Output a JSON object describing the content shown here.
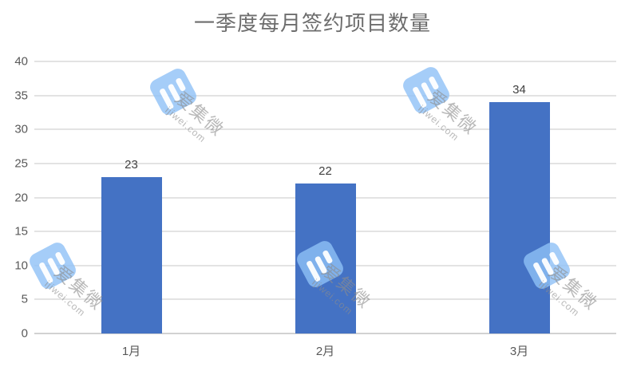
{
  "title": "一季度每月签约项目数量",
  "chart_data": {
    "type": "bar",
    "title": "一季度每月签约项目数量",
    "categories": [
      "1月",
      "2月",
      "3月"
    ],
    "values": [
      23,
      22,
      34
    ],
    "data_labels": [
      "23",
      "22",
      "34"
    ],
    "xlabel": "",
    "ylabel": "",
    "ylim": [
      0,
      40
    ],
    "yticks": [
      0,
      5,
      10,
      15,
      20,
      25,
      30,
      35,
      40
    ],
    "grid": true,
    "legend": "none",
    "bar_color": "#4472c4",
    "data_label_color": "#404040",
    "axis_text_color": "#595959",
    "gridline_color": "#e3e3e3",
    "axis_line_color": "#d2d2d2",
    "title_color": "#6d6d6d"
  },
  "watermark": {
    "cn": "爱集微",
    "en": "ijiwei.com",
    "logo_color": "#8fc1f6",
    "text_color": "#8c8c8c"
  }
}
